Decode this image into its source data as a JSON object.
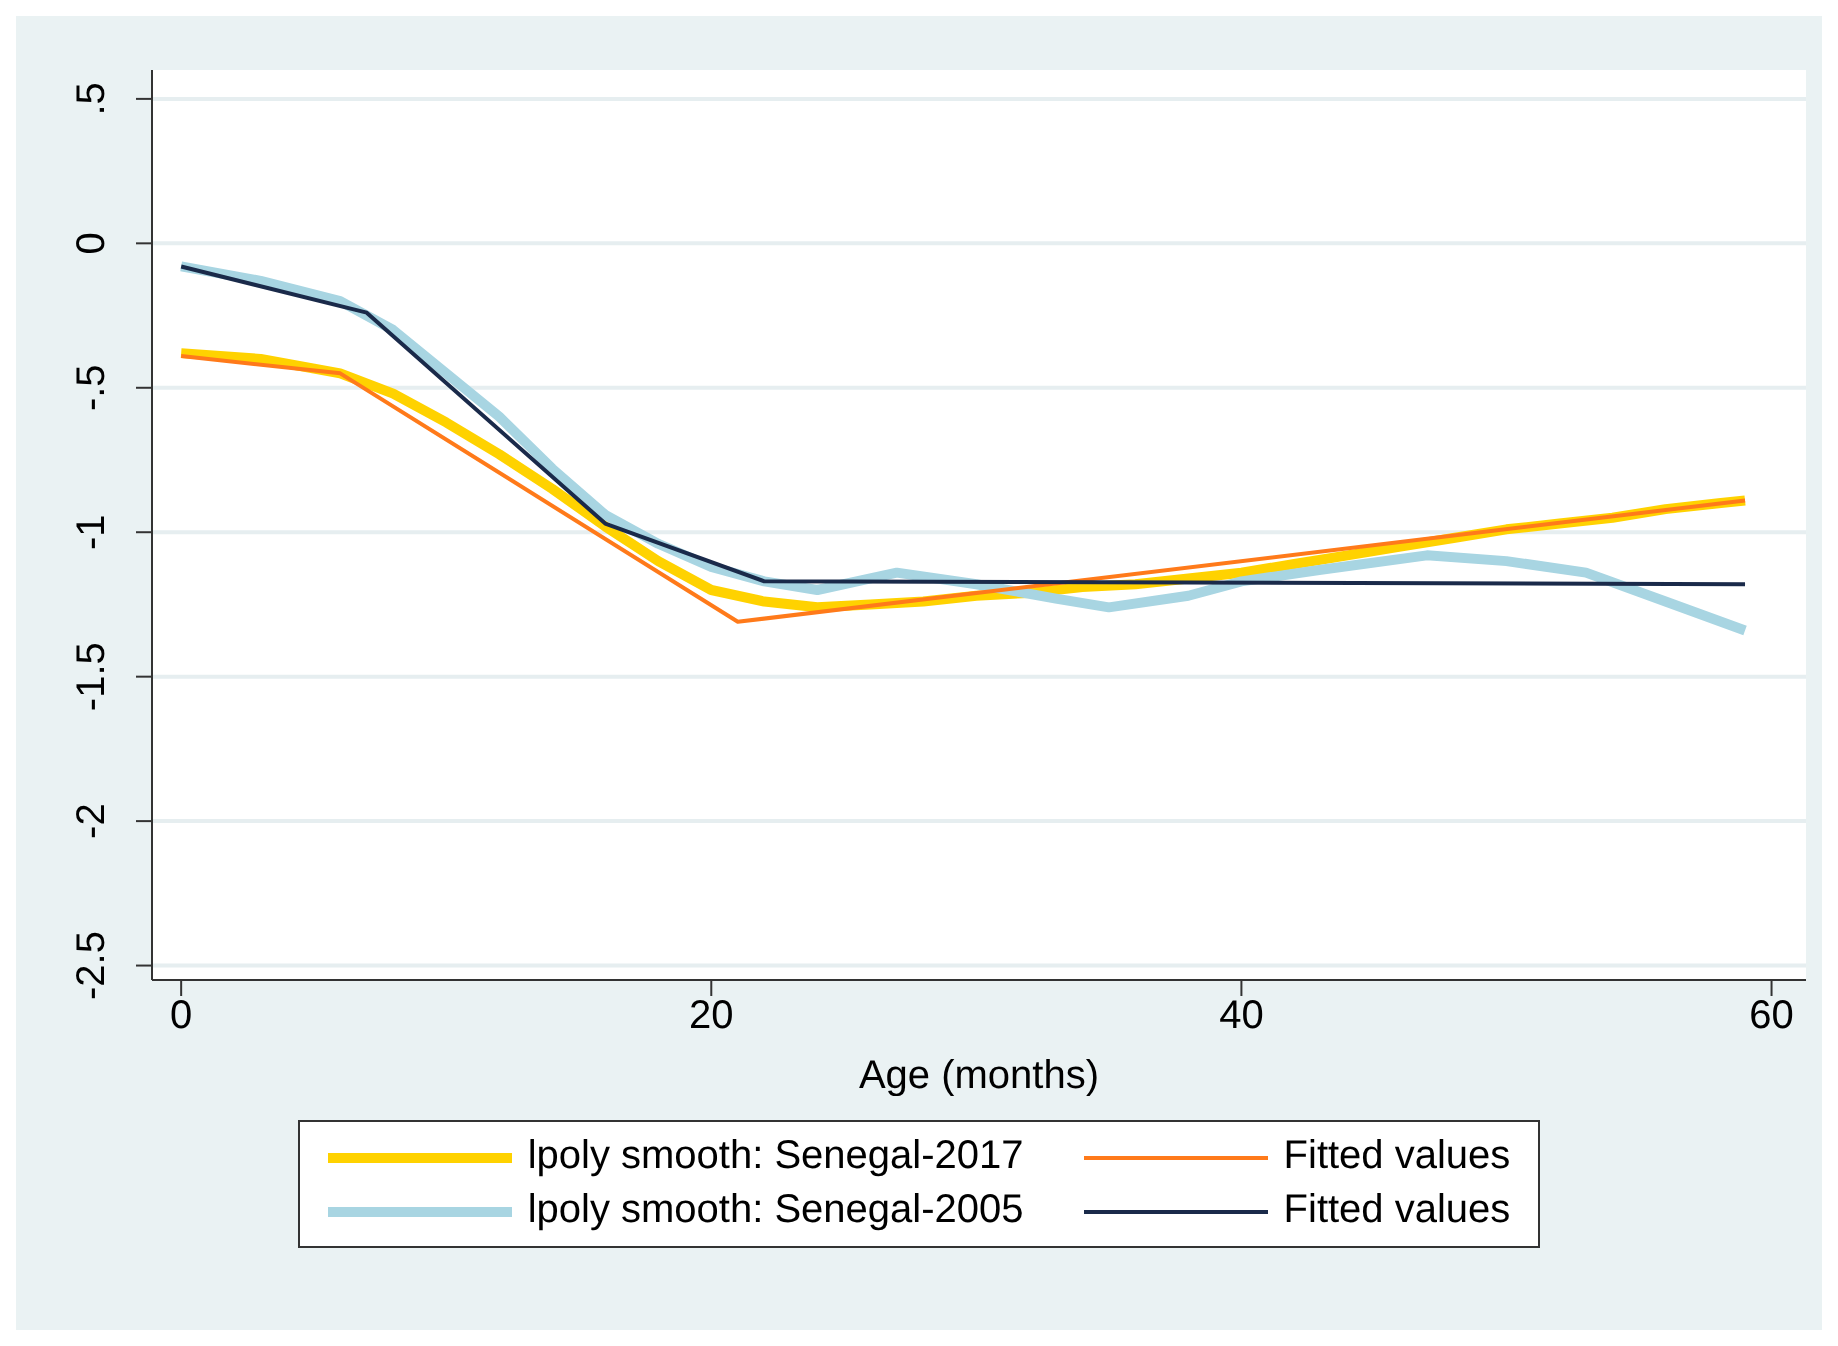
{
  "chart_data": {
    "type": "line",
    "xlabel": "Age (months)",
    "xlim": [
      -1.1,
      61.3
    ],
    "xticks": [
      0,
      20,
      40,
      60
    ],
    "ylim": [
      -2.55,
      0.6
    ],
    "yticks": [
      {
        "value": 0.5,
        "label": ".5"
      },
      0,
      {
        "value": -0.5,
        "label": "-.5"
      },
      -1,
      {
        "value": -1.5,
        "label": "-1.5"
      },
      -2,
      {
        "value": -2.5,
        "label": "-2.5"
      }
    ],
    "grid": "y",
    "legend": "bottom",
    "marker": "none",
    "line_style": "solid",
    "series": [
      {
        "name": "lpoly smooth: Senegal-2017",
        "color": "#ffd200",
        "x": [
          0,
          3,
          6,
          8,
          10,
          12,
          14,
          16,
          18,
          20,
          22,
          24,
          26,
          28,
          30,
          32,
          34,
          36,
          38,
          40,
          42,
          44,
          46,
          48,
          50,
          52,
          54,
          56,
          58,
          59
        ],
        "values": [
          -0.38,
          -0.4,
          -0.45,
          -0.52,
          -0.62,
          -0.73,
          -0.85,
          -0.98,
          -1.1,
          -1.2,
          -1.24,
          -1.26,
          -1.25,
          -1.24,
          -1.22,
          -1.21,
          -1.19,
          -1.18,
          -1.16,
          -1.14,
          -1.11,
          -1.08,
          -1.05,
          -1.02,
          -0.99,
          -0.97,
          -0.95,
          -0.92,
          -0.9,
          -0.89
        ]
      },
      {
        "name": "Fitted values",
        "color": "#ff7a1a",
        "x": [
          0,
          6,
          21,
          59
        ],
        "values": [
          -0.39,
          -0.45,
          -1.31,
          -0.89
        ]
      },
      {
        "name": "lpoly smooth: Senegal-2005",
        "color": "#a8d5e2",
        "x": [
          0,
          3,
          6,
          8,
          10,
          12,
          14,
          16,
          18,
          20,
          22,
          24,
          27,
          30,
          33,
          35,
          38,
          40,
          43,
          47,
          50,
          53,
          56,
          59
        ],
        "values": [
          -0.08,
          -0.13,
          -0.2,
          -0.3,
          -0.45,
          -0.6,
          -0.78,
          -0.94,
          -1.04,
          -1.12,
          -1.17,
          -1.2,
          -1.14,
          -1.18,
          -1.23,
          -1.26,
          -1.22,
          -1.17,
          -1.13,
          -1.08,
          -1.1,
          -1.14,
          -1.24,
          -1.34
        ]
      },
      {
        "name": "Fitted values",
        "color": "#1a2a4a",
        "x": [
          0,
          7,
          16,
          22,
          59
        ],
        "values": [
          -0.08,
          -0.24,
          -0.97,
          -1.17,
          -1.18
        ]
      }
    ]
  }
}
